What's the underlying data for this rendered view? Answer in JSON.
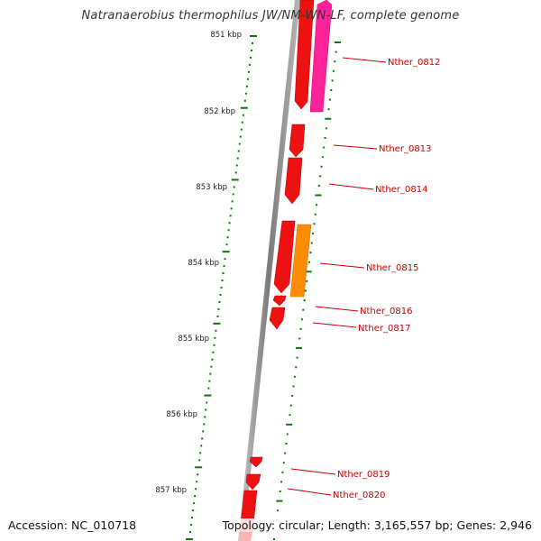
{
  "title": "Natranaerobius thermophilus JW/NM-WN-LF, complete genome",
  "footer": {
    "accession": "Accession: NC_010718",
    "topology": "Topology: circular; Length: 3,165,557 bp; Genes: 2,946"
  },
  "kbp_ticks": [
    "851 kbp",
    "852 kbp",
    "853 kbp",
    "854 kbp",
    "855 kbp",
    "856 kbp",
    "857 kbp"
  ],
  "genes": [
    {
      "label": "Nther_0812",
      "color": "#ee1111",
      "strand": "reverse"
    },
    {
      "label": "",
      "color": "#ff2299",
      "strand": "forward"
    },
    {
      "label": "Nther_0813",
      "color": "#ee1111",
      "strand": "reverse"
    },
    {
      "label": "Nther_0814",
      "color": "#ee1111",
      "strand": "reverse"
    },
    {
      "label": "Nther_0815",
      "color": "#ee1111",
      "strand": "reverse"
    },
    {
      "label": "",
      "color": "#ff8c00",
      "strand": "forward"
    },
    {
      "label": "Nther_0816",
      "color": "#ee1111",
      "strand": "reverse"
    },
    {
      "label": "Nther_0817",
      "color": "#ee1111",
      "strand": "reverse"
    },
    {
      "label": "Nther_0819",
      "color": "#ee1111",
      "strand": "reverse"
    },
    {
      "label": "Nther_0820",
      "color": "#ee1111",
      "strand": "reverse"
    }
  ],
  "colors": {
    "backbone": "#8a8a8a",
    "tick": "#0a7a0a",
    "label": "#cc0000",
    "gene_default": "#ee1111",
    "gene_pink": "#ff2299",
    "gene_orange": "#ff8c00"
  }
}
